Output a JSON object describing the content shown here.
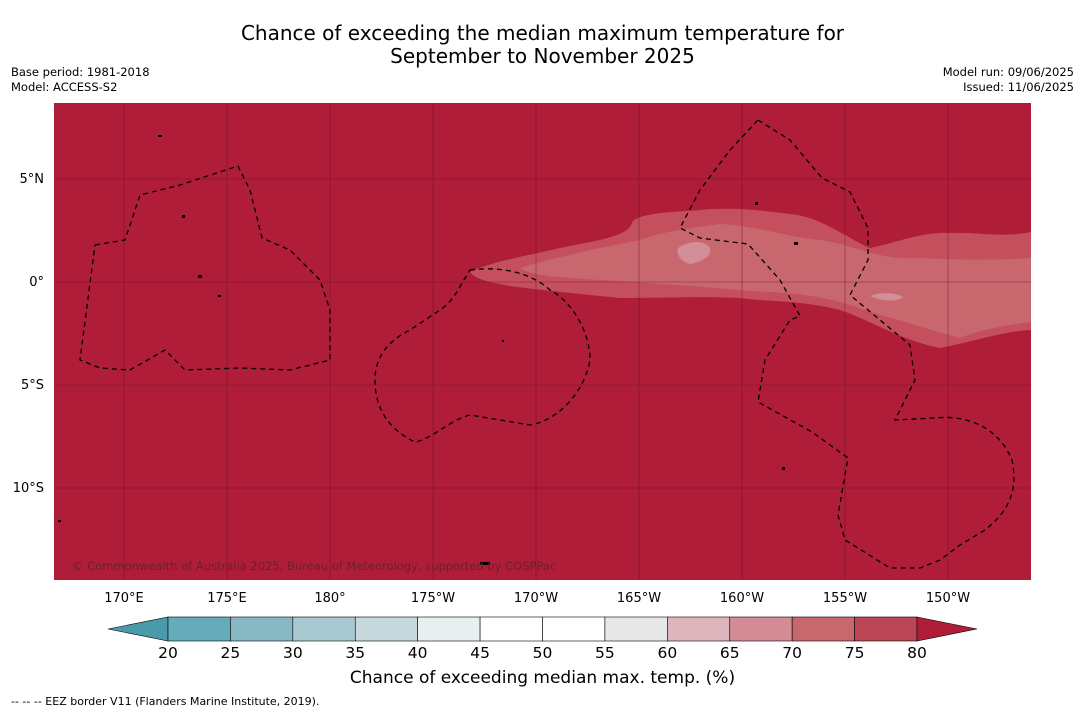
{
  "title_line1": "Chance of exceeding the median maximum temperature for",
  "title_line2": "September to November 2025",
  "meta_left": {
    "base_period": "Base period: 1981-2018",
    "model": "Model: ACCESS-S2"
  },
  "meta_right": {
    "model_run": "Model run: 09/06/2025",
    "issued": "Issued: 11/06/2025"
  },
  "copyright": "© Commonwealth of Australia 2025, Bureau of Meteorology, supported by COSPPac",
  "lon_ticks": [
    "170°E",
    "175°E",
    "180°",
    "175°W",
    "170°W",
    "165°W",
    "160°W",
    "155°W",
    "150°W"
  ],
  "lat_ticks": [
    "5°N",
    "0°",
    "5°S",
    "10°S"
  ],
  "colorbar": {
    "labels": [
      "20",
      "25",
      "30",
      "35",
      "40",
      "45",
      "50",
      "55",
      "60",
      "65",
      "70",
      "75",
      "80"
    ],
    "colors": [
      "#65abba",
      "#88b8c4",
      "#a8c9cf",
      "#c6d8dc",
      "#e9eef1",
      "#ffffff",
      "#ffffff",
      "#e8e7e8",
      "#ddb6bd",
      "#d38c95",
      "#c9676f",
      "#bd4656"
    ],
    "under_color": "#4a9ba9",
    "over_color": "#b01d39",
    "title": "Chance of exceeding median max. temp. (%)"
  },
  "map": {
    "background_color": "#b01d39",
    "band_color_70_75": "#c9505f",
    "band_color_65_70": "#c9676f",
    "band_color_60_65": "#d28e96",
    "eez_color": "#000000"
  },
  "footnote": "--  --  -- EEZ border V11 (Flanders Marine Institute, 2019)."
}
